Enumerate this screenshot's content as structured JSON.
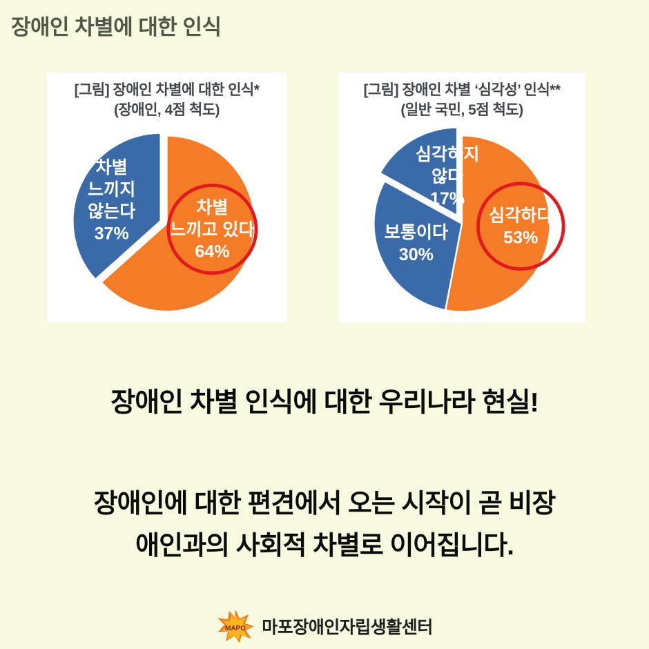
{
  "page": {
    "background_color": "#F7FADE"
  },
  "header": {
    "title": "장애인 차별에 대한 인식"
  },
  "chart_data": [
    {
      "type": "pie",
      "title": "[그림] 장애인 차별에 대한 인식*",
      "subtitle": "(장애인, 4점 척도)",
      "start_angle_deg": 0,
      "legend": "none",
      "highlight_color": "#E11A1E",
      "slice_colors": {
        "positive": "#F57C26",
        "negative": "#3A6BA8"
      },
      "slices": [
        {
          "label": "차별 느끼고 있다",
          "value": 64,
          "color": "#F57C26",
          "label_lines": [
            "차별",
            "느끼고 있다",
            "64%"
          ],
          "label_pos": {
            "x": 0.69,
            "y": 0.545
          },
          "circled": true,
          "circle_r": 66
        },
        {
          "label": "차별 느끼지 않는다",
          "value": 37,
          "color": "#3A6BA8",
          "label_lines": [
            "차별",
            "느끼지",
            "않는다",
            "37%"
          ],
          "label_pos": {
            "x": 0.27,
            "y": 0.4
          },
          "explode": 10
        }
      ]
    },
    {
      "type": "pie",
      "title": "[그림] 장애인 차별 ‘심각성’ 인식**",
      "subtitle": "(일반 국민, 5점 척도)",
      "start_angle_deg": 0,
      "legend": "none",
      "highlight_color": "#E11A1E",
      "slice_colors": {
        "positive": "#F57C26",
        "negative": "#3A6BA8"
      },
      "slices": [
        {
          "label": "심각하다",
          "value": 53,
          "color": "#F57C26",
          "label_lines": [
            "심각하다",
            "53%"
          ],
          "label_pos": {
            "x": 0.745,
            "y": 0.53
          },
          "circled": true,
          "circle_r": 64
        },
        {
          "label": "보통이다",
          "value": 30,
          "color": "#3A6BA8",
          "label_lines": [
            "보통이다",
            "30%"
          ],
          "label_pos": {
            "x": 0.31,
            "y": 0.615
          }
        },
        {
          "label": "심각하지 않다",
          "value": 17,
          "color": "#3A6BA8",
          "label_lines": [
            "심각하지",
            "않다",
            "17%"
          ],
          "label_pos": {
            "x": 0.44,
            "y": 0.28
          },
          "explode": 14
        }
      ]
    }
  ],
  "body": {
    "headline": "장애인 차별 인식에 대한 우리나라 현실!",
    "paragraph_lines": [
      "장애인에 대한 편견에서 오는 시작이 곧 비장",
      "애인과의 사회적 차별로 이어집니다."
    ]
  },
  "footer": {
    "logo_text": "MAPO",
    "org_name": "마포장애인자립생활센터",
    "logo_colors": {
      "star_front": "#F9B31C",
      "star_back": "#EE7D1F",
      "text": "#8C2026"
    }
  }
}
